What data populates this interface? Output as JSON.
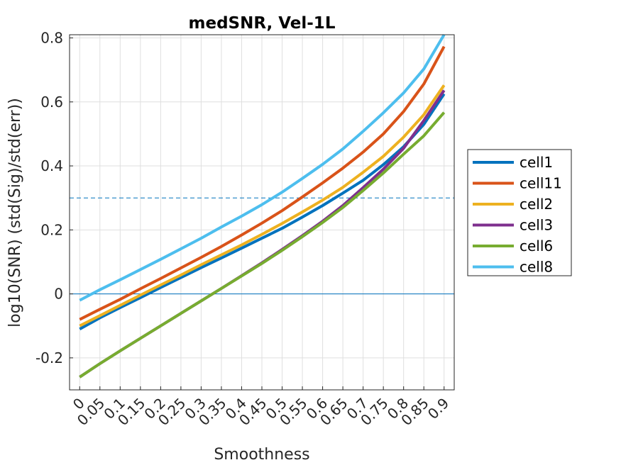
{
  "chart_data": {
    "type": "line",
    "title": "medSNR, Vel-1L",
    "xlabel": "Smoothness",
    "ylabel": "log10(SNR) (std(Sig)/std(err))",
    "x": [
      0,
      0.05,
      0.1,
      0.15,
      0.2,
      0.25,
      0.3,
      0.35,
      0.4,
      0.45,
      0.5,
      0.55,
      0.6,
      0.65,
      0.7,
      0.75,
      0.8,
      0.85,
      0.9
    ],
    "x_tick_labels": [
      "0",
      "0.05",
      "0.1",
      "0.15",
      "0.2",
      "0.25",
      "0.3",
      "0.35",
      "0.4",
      "0.45",
      "0.5",
      "0.55",
      "0.6",
      "0.65",
      "0.7",
      "0.75",
      "0.8",
      "0.85",
      "0.9"
    ],
    "xlim": [
      -0.025,
      0.925
    ],
    "ylim": [
      -0.3,
      0.81
    ],
    "y_ticks": [
      -0.2,
      0,
      0.2,
      0.4,
      0.6,
      0.8
    ],
    "y_tick_labels": [
      "-0.2",
      "0",
      "0.2",
      "0.4",
      "0.6",
      "0.8"
    ],
    "grid": true,
    "legend_position": "outside-right",
    "reference_lines": [
      {
        "y": 0.3,
        "style": "dashed",
        "color": "#0072BD"
      },
      {
        "y": 0,
        "style": "solid",
        "color": "#0072BD"
      }
    ],
    "series": [
      {
        "name": "cell1",
        "color": "#0072BD",
        "values": [
          -0.11,
          -0.075,
          -0.043,
          -0.012,
          0.02,
          0.051,
          0.082,
          0.112,
          0.143,
          0.174,
          0.205,
          0.24,
          0.276,
          0.315,
          0.355,
          0.404,
          0.46,
          0.53,
          0.625
        ]
      },
      {
        "name": "cell11",
        "color": "#D95319",
        "values": [
          -0.08,
          -0.048,
          -0.017,
          0.016,
          0.048,
          0.081,
          0.114,
          0.148,
          0.184,
          0.221,
          0.26,
          0.303,
          0.347,
          0.393,
          0.443,
          0.5,
          0.57,
          0.656,
          0.773
        ]
      },
      {
        "name": "cell2",
        "color": "#EDB120",
        "values": [
          -0.1,
          -0.068,
          -0.036,
          -0.004,
          0.028,
          0.059,
          0.091,
          0.122,
          0.153,
          0.186,
          0.22,
          0.256,
          0.293,
          0.333,
          0.38,
          0.43,
          0.49,
          0.56,
          0.652
        ]
      },
      {
        "name": "cell3",
        "color": "#7E2F8E",
        "values": [
          -0.26,
          -0.218,
          -0.178,
          -0.139,
          -0.1,
          -0.061,
          -0.022,
          0.017,
          0.057,
          0.097,
          0.139,
          0.182,
          0.227,
          0.276,
          0.332,
          0.39,
          0.455,
          0.542,
          0.636
        ]
      },
      {
        "name": "cell6",
        "color": "#77AC30",
        "values": [
          -0.26,
          -0.218,
          -0.178,
          -0.139,
          -0.1,
          -0.061,
          -0.022,
          0.017,
          0.056,
          0.095,
          0.136,
          0.179,
          0.223,
          0.27,
          0.323,
          0.378,
          0.437,
          0.494,
          0.567
        ]
      },
      {
        "name": "cell8",
        "color": "#4DBEEE",
        "values": [
          -0.02,
          0.013,
          0.044,
          0.076,
          0.108,
          0.141,
          0.174,
          0.209,
          0.243,
          0.279,
          0.318,
          0.361,
          0.405,
          0.453,
          0.508,
          0.566,
          0.628,
          0.703,
          0.81
        ]
      }
    ]
  }
}
